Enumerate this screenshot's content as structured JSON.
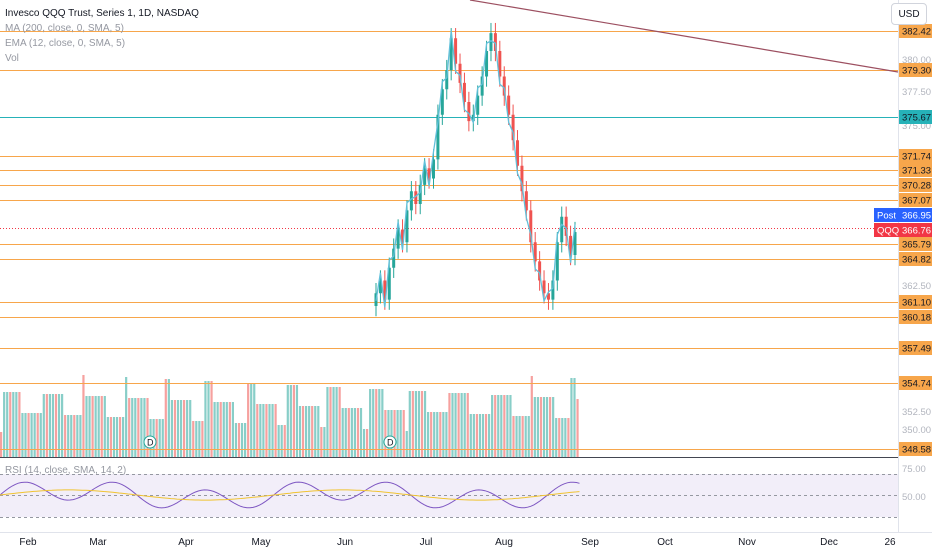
{
  "legend": {
    "title": "Invesco QQQ Trust, Series 1, 1D, NASDAQ",
    "ma": "MA (200, close, 0, SMA, 5)",
    "ema": "EMA (12, close, 0, SMA, 5)",
    "vol": "Vol"
  },
  "currency_button": "USD",
  "rsi_label": "RSI (14, close, SMA, 14, 2)",
  "colors": {
    "up": "#26a69a",
    "down": "#ef5350",
    "hline": "#f7a64b",
    "ema": "#62c0da",
    "trend": "#9c4f60",
    "rsi": "#7e57c2",
    "rsi_ma": "#f0c330",
    "cyan_label": "#26b2b8",
    "post": "#2962ff",
    "qqq": "#f23645"
  },
  "chart_data": {
    "type": "candlestick",
    "y_ticks": [
      "380.00",
      "377.50",
      "375.00",
      "362.50",
      "352.50",
      "350.00"
    ],
    "price_levels": [
      {
        "value": "382.42",
        "color": "#f7a64b"
      },
      {
        "value": "379.30",
        "color": "#f7a64b"
      },
      {
        "value": "375.67",
        "color": "#26b2b8"
      },
      {
        "value": "371.74",
        "color": "#f7a64b"
      },
      {
        "value": "371.33",
        "color": "#f7a64b"
      },
      {
        "value": "370.28",
        "color": "#f7a64b"
      },
      {
        "value": "367.07",
        "color": "#f7a64b"
      },
      {
        "value": "365.79",
        "color": "#f7a64b"
      },
      {
        "value": "364.82",
        "color": "#f7a64b"
      },
      {
        "value": "361.10",
        "color": "#f7a64b"
      },
      {
        "value": "360.18",
        "color": "#f7a64b"
      },
      {
        "value": "357.49",
        "color": "#f7a64b"
      },
      {
        "value": "354.74",
        "color": "#f7a64b"
      },
      {
        "value": "348.58",
        "color": "#f7a64b"
      }
    ],
    "post_label": {
      "name": "Post",
      "value": "366.95"
    },
    "qqq_label": {
      "name": "QQQ",
      "value": "366.76"
    },
    "x_labels": [
      "Feb",
      "Mar",
      "Apr",
      "May",
      "Jun",
      "Jul",
      "Aug",
      "Sep",
      "Oct",
      "Nov",
      "Dec",
      "26"
    ],
    "rsi_ticks": [
      "75.00",
      "50.00"
    ],
    "dividend_marker": "D"
  }
}
